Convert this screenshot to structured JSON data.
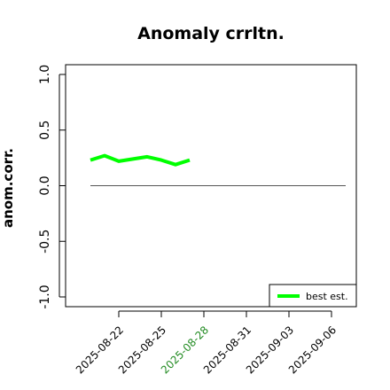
{
  "chart_data": {
    "type": "line",
    "title": "Anomaly crrltn.",
    "xlabel": "",
    "ylabel": "anom.corr.",
    "ylim": [
      -1.0,
      1.0
    ],
    "yticks": [
      "-1.0",
      "-0.5",
      "0.0",
      "0.5",
      "1.0"
    ],
    "xlim": [
      "2025-08-19",
      "2025-09-07"
    ],
    "xticks": [
      "2025-08-22",
      "2025-08-25",
      "2025-08-28",
      "2025-08-31",
      "2025-09-03",
      "2025-09-06"
    ],
    "xtick_colors": [
      "#000000",
      "#000000",
      "#228B22",
      "#000000",
      "#000000",
      "#000000"
    ],
    "grid": false,
    "legend_position": "bottom-right",
    "reference_line": {
      "y": 0.0,
      "from": "2025-08-20",
      "to": "2025-09-07",
      "color": "#555555"
    },
    "series": [
      {
        "name": "best est.",
        "color": "#00ff00",
        "x": [
          "2025-08-20",
          "2025-08-21",
          "2025-08-22",
          "2025-08-23",
          "2025-08-24",
          "2025-08-25",
          "2025-08-26",
          "2025-08-27",
          "2025-08-28"
        ],
        "y": [
          0.23,
          0.27,
          0.22,
          0.24,
          0.26,
          0.23,
          0.19,
          0.23,
          null
        ]
      }
    ]
  }
}
